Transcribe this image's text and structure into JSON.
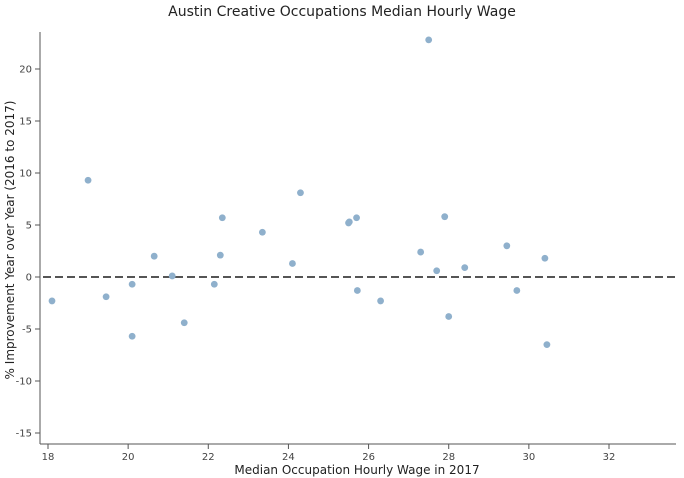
{
  "chart_data": {
    "type": "scatter",
    "title": "Austin Creative Occupations Median Hourly Wage",
    "xlabel": "Median Occupation Hourly Wage in 2017",
    "ylabel": "% Improvement Year over Year (2016 to 2017)",
    "xlim": [
      18,
      33
    ],
    "ylim": [
      -15,
      23
    ],
    "xticks": [
      18,
      20,
      22,
      24,
      26,
      28,
      30,
      32
    ],
    "yticks": [
      -15,
      -10,
      -5,
      0,
      5,
      10,
      15,
      20
    ],
    "reference_line": {
      "y": 0,
      "style": "dashed"
    },
    "grid": false,
    "marker_color": "#8fb0cc",
    "points": [
      {
        "x": 18.1,
        "y": -2.3
      },
      {
        "x": 19.0,
        "y": 9.3
      },
      {
        "x": 19.45,
        "y": -1.9
      },
      {
        "x": 20.1,
        "y": -0.7
      },
      {
        "x": 20.1,
        "y": -5.7
      },
      {
        "x": 20.65,
        "y": 2.0
      },
      {
        "x": 21.1,
        "y": 0.1
      },
      {
        "x": 21.4,
        "y": -4.4
      },
      {
        "x": 22.15,
        "y": -0.7
      },
      {
        "x": 22.3,
        "y": 2.1
      },
      {
        "x": 22.35,
        "y": 5.7
      },
      {
        "x": 23.35,
        "y": 4.3
      },
      {
        "x": 24.1,
        "y": 1.3
      },
      {
        "x": 24.3,
        "y": 8.1
      },
      {
        "x": 25.5,
        "y": 5.2
      },
      {
        "x": 25.52,
        "y": 5.3
      },
      {
        "x": 25.7,
        "y": 5.7
      },
      {
        "x": 25.72,
        "y": -1.3
      },
      {
        "x": 26.3,
        "y": -2.3
      },
      {
        "x": 27.3,
        "y": 2.4
      },
      {
        "x": 27.5,
        "y": 22.8
      },
      {
        "x": 27.7,
        "y": 0.6
      },
      {
        "x": 27.9,
        "y": 5.8
      },
      {
        "x": 28.0,
        "y": -3.8
      },
      {
        "x": 28.4,
        "y": 0.9
      },
      {
        "x": 29.45,
        "y": 3.0
      },
      {
        "x": 29.7,
        "y": -1.3
      },
      {
        "x": 30.4,
        "y": 1.8
      },
      {
        "x": 30.45,
        "y": -6.5
      }
    ]
  }
}
